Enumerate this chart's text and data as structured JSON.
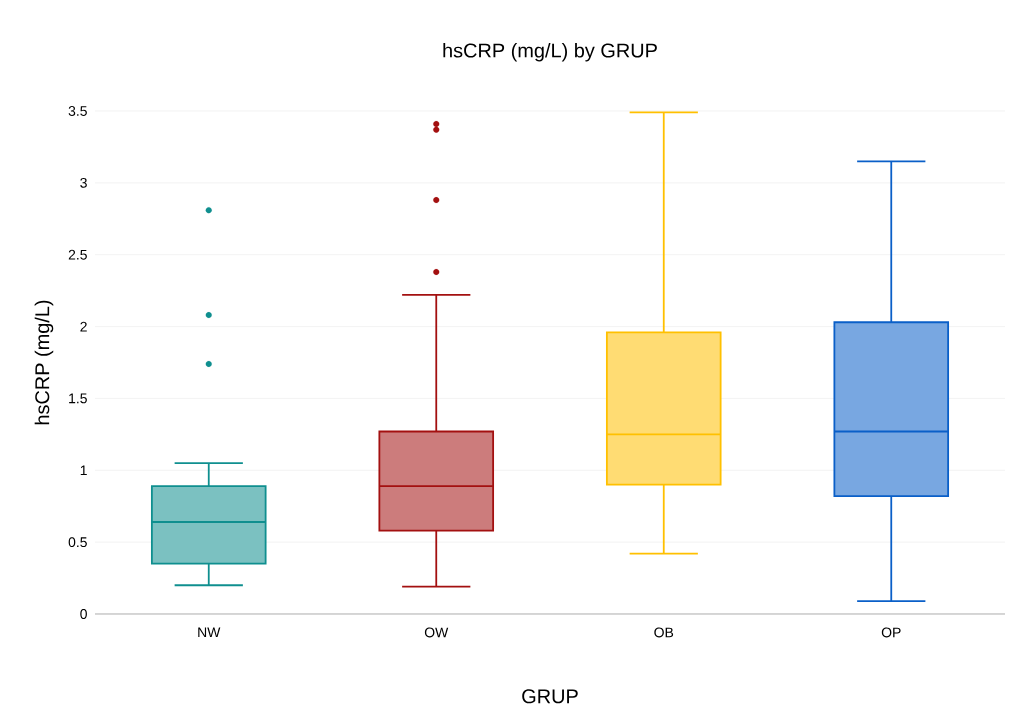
{
  "chart_data": {
    "type": "box",
    "title": "hsCRP (mg/L) by GRUP",
    "xlabel": "GRUP",
    "ylabel": "hsCRP (mg/L)",
    "categories": [
      "NW",
      "OW",
      "OB",
      "OP"
    ],
    "boxes": [
      {
        "low": 0.2,
        "q1": 0.35,
        "median": 0.64,
        "q3": 0.89,
        "high": 1.05,
        "outliers": [
          1.74,
          2.08,
          2.81
        ]
      },
      {
        "low": 0.19,
        "q1": 0.58,
        "median": 0.89,
        "q3": 1.27,
        "high": 2.22,
        "outliers": [
          2.38,
          2.88,
          3.37,
          3.41
        ]
      },
      {
        "low": 0.42,
        "q1": 0.9,
        "median": 1.25,
        "q3": 1.96,
        "high": 3.49
      },
      {
        "low": 0.09,
        "q1": 0.82,
        "median": 1.27,
        "q3": 2.03,
        "high": 3.15
      }
    ],
    "colors": [
      "#0f8f8f",
      "#a31010",
      "#ffc000",
      "#0a5fc8"
    ],
    "ylim": [
      0,
      3.5
    ],
    "yticks": [
      0,
      0.5,
      1,
      1.5,
      2,
      2.5,
      3,
      3.5
    ],
    "grid": "y"
  }
}
